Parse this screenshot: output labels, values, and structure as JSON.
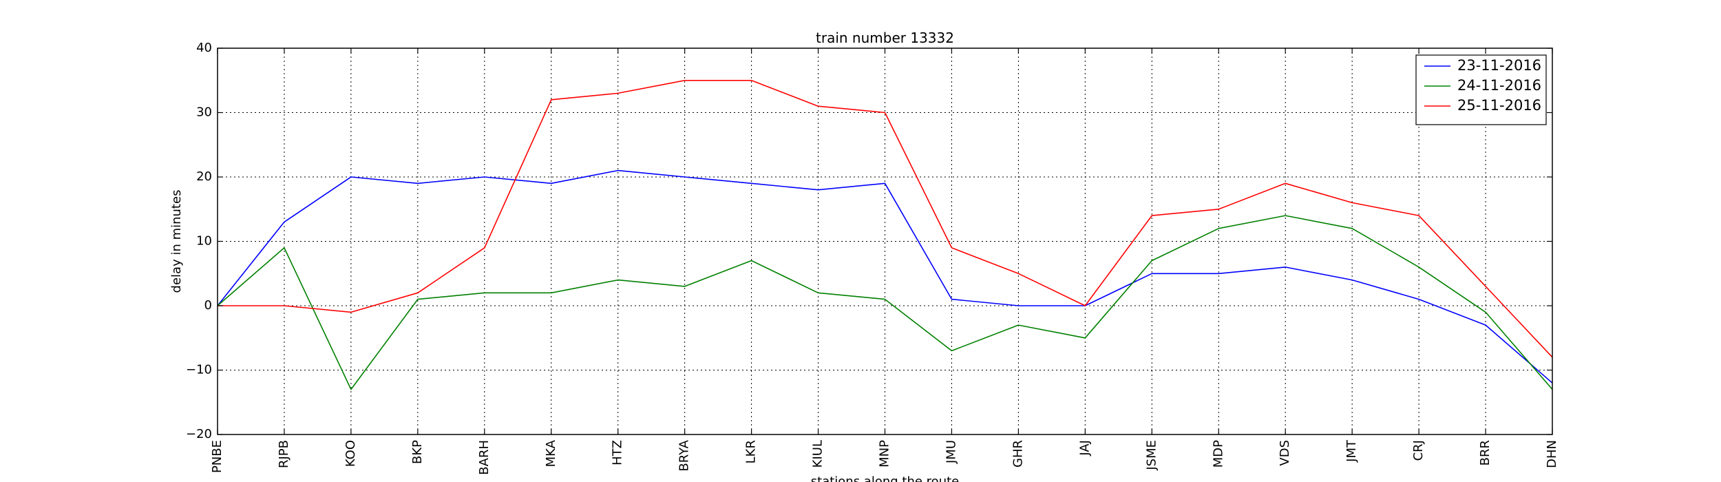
{
  "chart_data": {
    "type": "line",
    "title": "train number 13332",
    "xlabel": "stations along the route",
    "ylabel": "delay in minutes",
    "categories": [
      "PNBE",
      "RJPB",
      "KOO",
      "BKP",
      "BARH",
      "MKA",
      "HTZ",
      "BRYA",
      "LKR",
      "KIUL",
      "MNP",
      "JMU",
      "GHR",
      "JAJ",
      "JSME",
      "MDP",
      "VDS",
      "JMT",
      "CRJ",
      "BRR",
      "DHN"
    ],
    "ylim": [
      -20,
      40
    ],
    "yticks": [
      -20,
      -10,
      0,
      10,
      20,
      30,
      40
    ],
    "grid": true,
    "legend_position": "top-right",
    "series": [
      {
        "name": "23-11-2016",
        "color": "#0000ff",
        "values": [
          0,
          13,
          20,
          19,
          20,
          19,
          21,
          20,
          19,
          18,
          19,
          1,
          0,
          0,
          5,
          5,
          6,
          4,
          1,
          -3,
          -12
        ]
      },
      {
        "name": "24-11-2016",
        "color": "#008000",
        "values": [
          0,
          9,
          -13,
          1,
          2,
          2,
          4,
          3,
          7,
          2,
          1,
          -7,
          -3,
          -5,
          7,
          12,
          14,
          12,
          6,
          -1,
          -13
        ]
      },
      {
        "name": "25-11-2016",
        "color": "#ff0000",
        "values": [
          0,
          0,
          -1,
          2,
          9,
          32,
          33,
          35,
          35,
          31,
          30,
          9,
          5,
          0,
          14,
          15,
          19,
          16,
          14,
          3,
          -8
        ]
      }
    ]
  }
}
